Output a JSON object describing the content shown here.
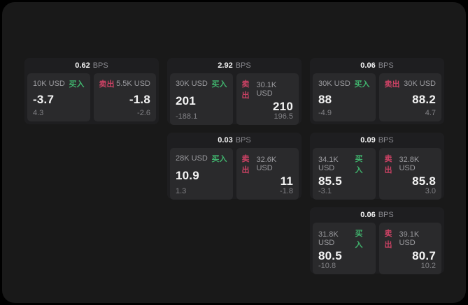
{
  "labels": {
    "bps_unit": "BPS",
    "buy": "买入",
    "sell": "卖出"
  },
  "colors": {
    "background_outer": "#000000",
    "background_screen": "#191919",
    "card": "#1e1e20",
    "panel": "#2a2a2c",
    "buy_accent": "#40b36d",
    "sell_accent": "#cd4265",
    "primary_text": "#f4f4f4",
    "secondary_text": "#9b9b9f"
  },
  "cards": [
    {
      "bps": "0.62",
      "buy": {
        "amount": "10K USD",
        "price": "-3.7",
        "delta": "4.3"
      },
      "sell": {
        "amount": "5.5K USD",
        "price": "-1.8",
        "delta": "-2.6"
      }
    },
    {
      "bps": "2.92",
      "buy": {
        "amount": "30K USD",
        "price": "201",
        "delta": "-188.1"
      },
      "sell": {
        "amount": "30.1K USD",
        "price": "210",
        "delta": "196.5"
      }
    },
    {
      "bps": "0.06",
      "buy": {
        "amount": "30K USD",
        "price": "88",
        "delta": "-4.9"
      },
      "sell": {
        "amount": "30K USD",
        "price": "88.2",
        "delta": "4.7"
      }
    },
    {
      "bps": "0.03",
      "buy": {
        "amount": "28K USD",
        "price": "10.9",
        "delta": "1.3"
      },
      "sell": {
        "amount": "32.6K USD",
        "price": "11",
        "delta": "-1.8"
      }
    },
    {
      "bps": "0.09",
      "buy": {
        "amount": "34.1K USD",
        "price": "85.5",
        "delta": "-3.1"
      },
      "sell": {
        "amount": "32.8K USD",
        "price": "85.8",
        "delta": "3.0"
      }
    },
    {
      "bps": "0.06",
      "buy": {
        "amount": "31.8K USD",
        "price": "80.5",
        "delta": "-10.8"
      },
      "sell": {
        "amount": "39.1K USD",
        "price": "80.7",
        "delta": "10.2"
      }
    }
  ]
}
